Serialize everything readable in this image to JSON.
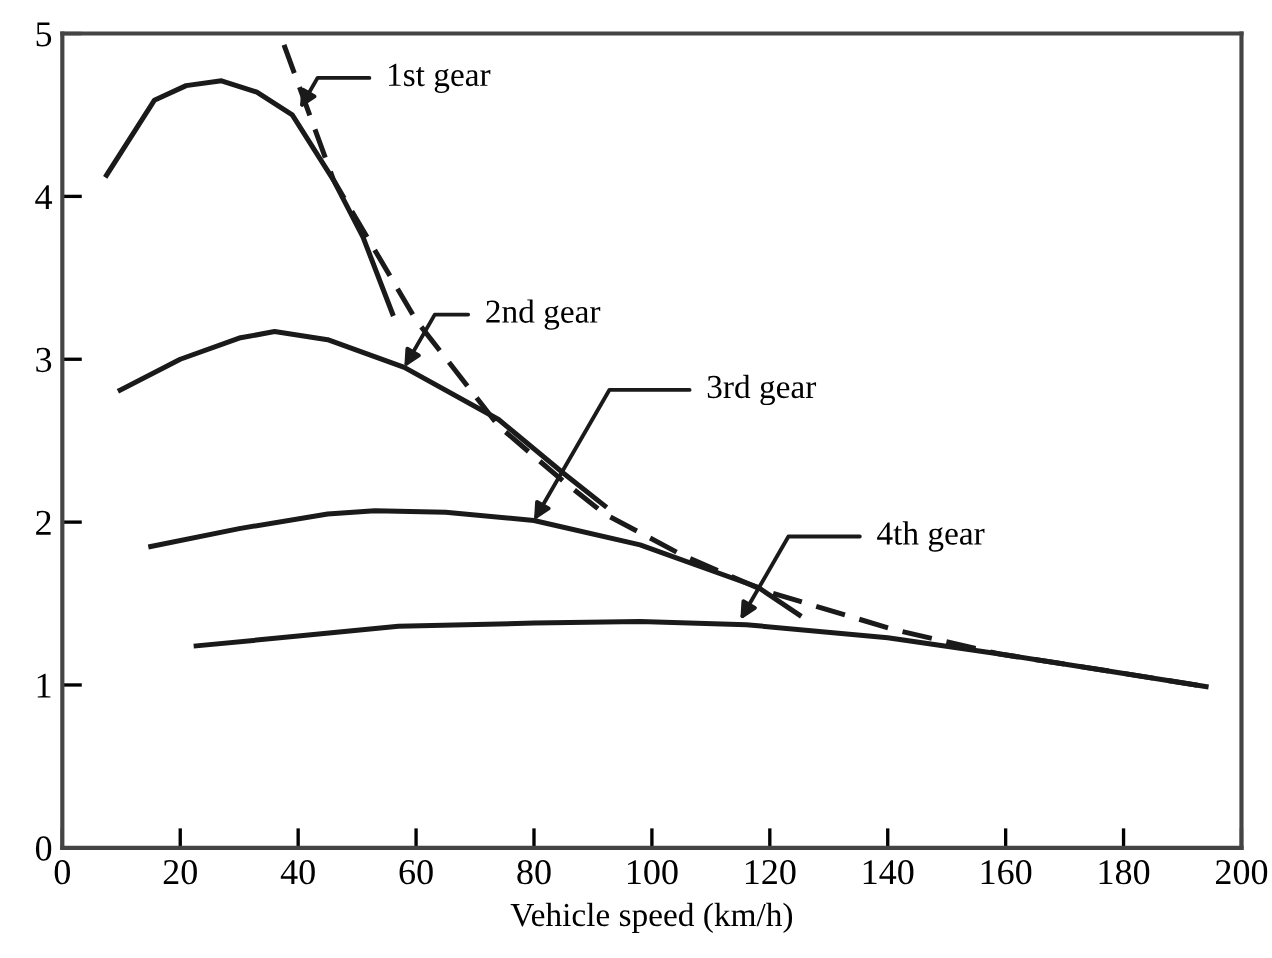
{
  "chart_data": {
    "type": "line",
    "xlabel": "Vehicle speed (km/h)",
    "xlim": [
      0,
      200
    ],
    "ylim": [
      0,
      5
    ],
    "xticks": [
      0,
      20,
      40,
      60,
      80,
      100,
      120,
      140,
      160,
      180,
      200
    ],
    "yticks": [
      0,
      1,
      2,
      3,
      4,
      5
    ],
    "grid": false,
    "legend": false,
    "marker": "none",
    "series": [
      {
        "color": "#1a1a1a",
        "line_style": "solid",
        "x": [
          7.5,
          15.6,
          21,
          27,
          33,
          39,
          46,
          51,
          56
        ],
        "values": [
          4.13,
          4.59,
          4.68,
          4.71,
          4.64,
          4.5,
          4.1,
          3.75,
          3.28
        ]
      },
      {
        "color": "#1a1a1a",
        "line_style": "solid",
        "x": [
          9.8,
          20,
          30,
          36,
          45,
          58,
          74,
          85,
          92
        ],
        "values": [
          2.81,
          3.0,
          3.13,
          3.17,
          3.12,
          2.95,
          2.63,
          2.3,
          2.1
        ]
      },
      {
        "color": "#1a1a1a",
        "line_style": "solid",
        "x": [
          15,
          30,
          45,
          53,
          65,
          80,
          98,
          118,
          125
        ],
        "values": [
          1.85,
          1.96,
          2.05,
          2.07,
          2.06,
          2.01,
          1.86,
          1.6,
          1.43
        ]
      },
      {
        "color": "#1a1a1a",
        "line_style": "solid",
        "x": [
          22.7,
          40,
          57,
          80,
          98,
          116,
          140,
          159,
          175,
          194
        ],
        "values": [
          1.24,
          1.3,
          1.36,
          1.38,
          1.39,
          1.37,
          1.29,
          1.19,
          1.1,
          0.99
        ]
      },
      {
        "color": "#1a1a1a",
        "line_style": "dashed",
        "x": [
          37.6,
          46,
          60,
          74,
          85,
          92,
          105,
          119,
          141,
          159,
          175,
          194
        ],
        "values": [
          4.93,
          4.1,
          3.24,
          2.59,
          2.25,
          2.05,
          1.8,
          1.58,
          1.34,
          1.19,
          1.1,
          0.99
        ]
      }
    ],
    "annotations": [
      {
        "text": "1st gear",
        "x": 40.3,
        "y": 4.54
      },
      {
        "text": "2nd gear",
        "x": 58,
        "y": 2.95
      },
      {
        "text": "3rd gear",
        "x": 80,
        "y": 2.01
      },
      {
        "text": "4th gear",
        "x": 115,
        "y": 1.4
      }
    ]
  }
}
